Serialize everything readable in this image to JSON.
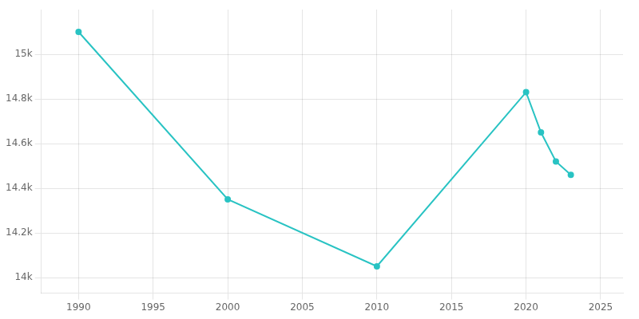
{
  "chart_data": {
    "type": "line",
    "x": [
      1990,
      2000,
      2010,
      2020,
      2021,
      2022,
      2023
    ],
    "values": [
      15100,
      14350,
      14050,
      14830,
      14650,
      14520,
      14460
    ],
    "color": "#29c3c3",
    "marker": "o",
    "xlim": [
      1987.5,
      2026.5
    ],
    "xticks": [
      1990,
      1995,
      2000,
      2005,
      2010,
      2015,
      2020,
      2025
    ],
    "ylim": [
      13930,
      15200
    ],
    "yticks": [
      {
        "value": 14000,
        "label": "14k"
      },
      {
        "value": 14200,
        "label": "14.2k"
      },
      {
        "value": 14400,
        "label": "14.4k"
      },
      {
        "value": 14600,
        "label": "14.6k"
      },
      {
        "value": 14800,
        "label": "14.8k"
      },
      {
        "value": 15000,
        "label": "15k"
      }
    ],
    "grid": true
  }
}
